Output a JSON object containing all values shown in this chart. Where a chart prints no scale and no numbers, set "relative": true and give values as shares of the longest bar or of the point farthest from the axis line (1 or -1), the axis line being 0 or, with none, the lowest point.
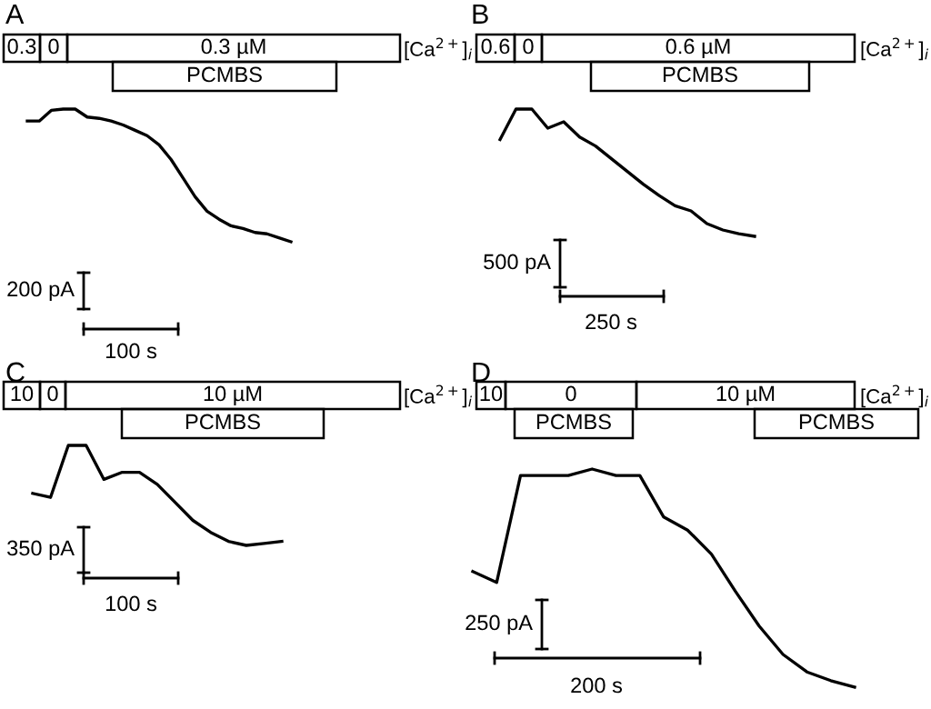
{
  "chart_data": [
    {
      "type": "line",
      "title": "A",
      "relative": true,
      "categories": [
        null,
        null,
        null,
        null,
        null,
        null,
        null,
        null,
        null,
        null,
        null,
        null,
        null,
        null,
        null,
        null,
        null,
        null,
        null,
        null,
        null,
        null,
        null
      ],
      "series": [
        {
          "color": "#000000",
          "values": [
            0.91,
            0.91,
            0.99,
            1,
            1,
            0.94,
            0.93,
            0.91,
            0.88,
            0.84,
            0.8,
            0.73,
            0.62,
            0.48,
            0.34,
            0.23,
            0.17,
            0.12,
            0.1,
            0.07,
            0.06,
            0.03,
            0
          ]
        }
      ],
      "annotations": [
        "0.3",
        "0",
        "0.3 µM",
        "PCMBS",
        "[Ca$^{2+}$]$_{i}$",
        "200 pA",
        "100 s"
      ]
    },
    {
      "type": "line",
      "title": "B",
      "relative": true,
      "categories": [
        null,
        null,
        null,
        null,
        null,
        null,
        null,
        null,
        null,
        null,
        null,
        null,
        null,
        null,
        null,
        null,
        null
      ],
      "series": [
        {
          "color": "#000000",
          "values": [
            0.76,
            1,
            1,
            0.85,
            0.9,
            0.78,
            0.71,
            0.61,
            0.51,
            0.41,
            0.32,
            0.24,
            0.2,
            0.1,
            0.05,
            0.02,
            0
          ]
        }
      ],
      "annotations": [
        "0.6",
        "0",
        "0.6 µM",
        "PCMBS",
        "[Ca$^{2+}$]$_{i}$",
        "500 pA",
        "250 s"
      ]
    },
    {
      "type": "line",
      "title": "C",
      "relative": true,
      "categories": [
        null,
        null,
        null,
        null,
        null,
        null,
        null,
        null,
        null,
        null,
        null,
        null,
        null,
        null,
        null
      ],
      "series": [
        {
          "color": "#000000",
          "values": [
            0.52,
            0.48,
            1,
            1,
            0.66,
            0.73,
            0.73,
            0.61,
            0.43,
            0.25,
            0.13,
            0.04,
            0,
            0.02,
            0.04
          ]
        }
      ],
      "annotations": [
        "10",
        "0",
        "10 µM",
        "PCMBS",
        "[Ca$^{2+}$]$_{i}$",
        "350 pA",
        "100 s"
      ]
    },
    {
      "type": "line",
      "title": "D",
      "relative": true,
      "categories": [
        null,
        null,
        null,
        null,
        null,
        null,
        null,
        null,
        null,
        null,
        null,
        null,
        null,
        null,
        null,
        null,
        null
      ],
      "series": [
        {
          "color": "#000000",
          "values": [
            0.53,
            0.48,
            0.97,
            0.97,
            0.97,
            1,
            0.97,
            0.97,
            0.78,
            0.72,
            0.61,
            0.44,
            0.28,
            0.15,
            0.07,
            0.03,
            0
          ]
        }
      ],
      "annotations": [
        "10",
        "0",
        "10 µM",
        "PCMBS",
        "PCMBS",
        "[Ca$^{2+}$]$_{i}$",
        "250 pA",
        "200 s"
      ]
    }
  ]
}
